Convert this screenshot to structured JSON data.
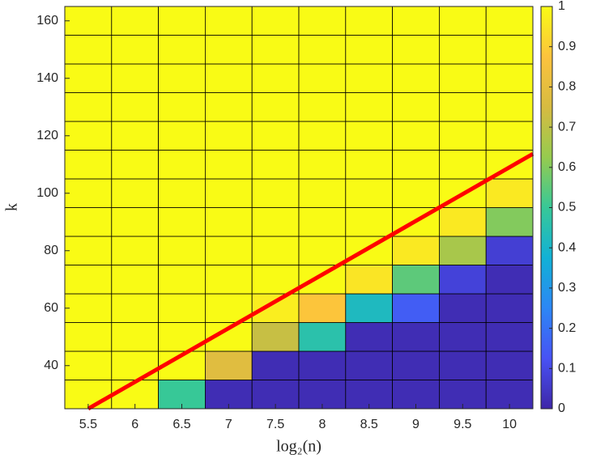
{
  "chart_data": {
    "type": "heatmap",
    "xlabel": "log₂(n)",
    "ylabel": "k",
    "x": [
      5.5,
      6,
      6.5,
      7,
      7.5,
      8,
      8.5,
      9,
      9.5,
      10
    ],
    "y": [
      30,
      40,
      50,
      60,
      70,
      80,
      90,
      100,
      110,
      120,
      130,
      140,
      150,
      160
    ],
    "z": [
      [
        1,
        1,
        0.5,
        0.02,
        0.02,
        0.02,
        0.02,
        0.02,
        0.02,
        0.02
      ],
      [
        1,
        1,
        1,
        0.78,
        0.02,
        0.02,
        0.02,
        0.02,
        0.02,
        0.02
      ],
      [
        1,
        1,
        1,
        1,
        0.72,
        0.46,
        0.02,
        0.02,
        0.02,
        0.02
      ],
      [
        1,
        1,
        1,
        1,
        0.97,
        0.88,
        0.42,
        0.15,
        0.02,
        0.02
      ],
      [
        1,
        1,
        1,
        1,
        1,
        1,
        0.95,
        0.55,
        0.08,
        0.02
      ],
      [
        1,
        1,
        1,
        1,
        1,
        1,
        1,
        0.96,
        0.66,
        0.07
      ],
      [
        1,
        1,
        1,
        1,
        1,
        1,
        1,
        1,
        0.96,
        0.6
      ],
      [
        1,
        1,
        1,
        1,
        1,
        1,
        1,
        1,
        1,
        0.96
      ],
      [
        1,
        1,
        1,
        1,
        1,
        1,
        1,
        1,
        1,
        1
      ],
      [
        1,
        1,
        1,
        1,
        1,
        1,
        1,
        1,
        1,
        1
      ],
      [
        1,
        1,
        1,
        1,
        1,
        1,
        1,
        1,
        1,
        1
      ],
      [
        1,
        1,
        1,
        1,
        1,
        1,
        1,
        1,
        1,
        1
      ],
      [
        1,
        1,
        1,
        1,
        1,
        1,
        1,
        1,
        1,
        1
      ],
      [
        1,
        1,
        1,
        1,
        1,
        1,
        1,
        1,
        1,
        1
      ]
    ],
    "xlim": [
      5.25,
      10.25
    ],
    "ylim": [
      25,
      165
    ],
    "xticks": [
      5.5,
      6,
      6.5,
      7,
      7.5,
      8,
      8.5,
      9,
      9.5,
      10
    ],
    "yticks": [
      40,
      60,
      80,
      100,
      120,
      140,
      160
    ],
    "colormap": "parula",
    "clim": [
      0,
      1
    ],
    "cticks": [
      0,
      0.1,
      0.2,
      0.3,
      0.4,
      0.5,
      0.6,
      0.7,
      0.8,
      0.9,
      1
    ],
    "line": {
      "x": [
        5.5,
        10.25
      ],
      "y": [
        25,
        113.7
      ],
      "color": "#ff0000"
    }
  }
}
